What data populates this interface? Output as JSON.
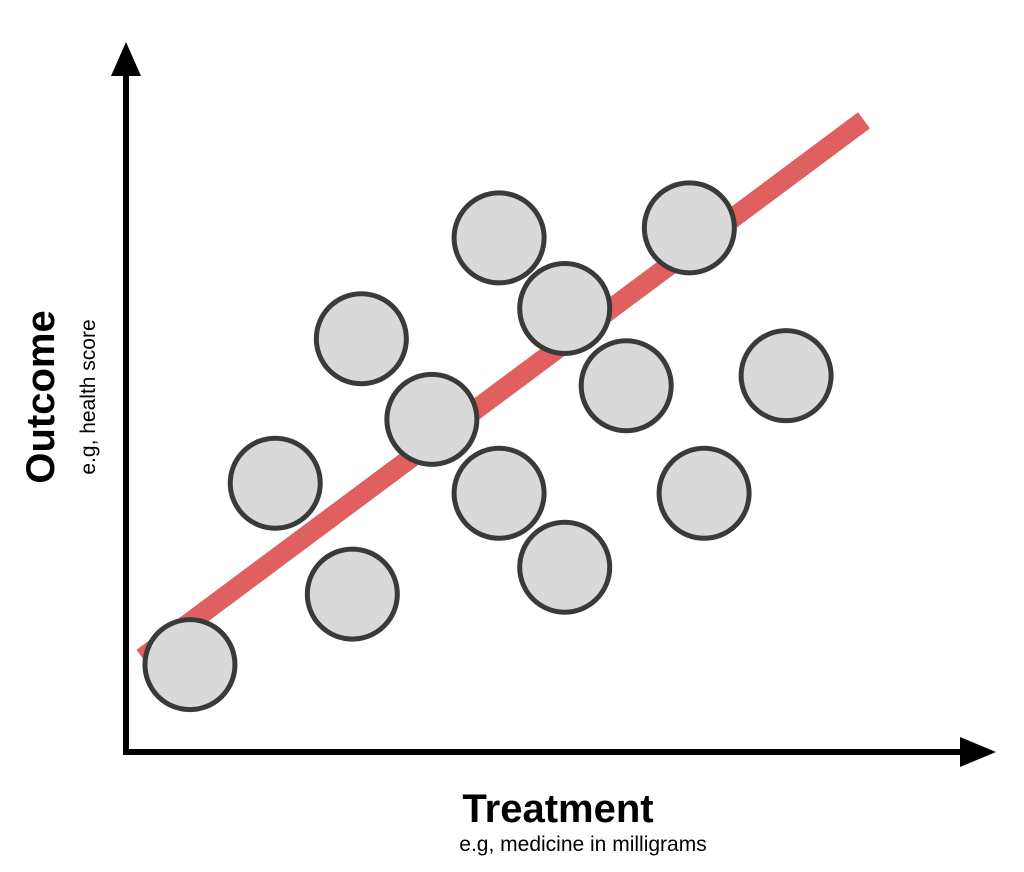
{
  "chart_data": {
    "type": "scatter",
    "title": "",
    "xlabel": "Treatment",
    "xlabel_sub": "e.g, medicine in milligrams",
    "ylabel": "Outcome",
    "ylabel_sub": "e.g, health score",
    "grid": false,
    "xlim": [
      0,
      10
    ],
    "ylim": [
      0,
      10
    ],
    "points": [
      {
        "x": 0.78,
        "y": 1.3
      },
      {
        "x": 1.82,
        "y": 4.0
      },
      {
        "x": 2.76,
        "y": 2.35
      },
      {
        "x": 2.87,
        "y": 6.15
      },
      {
        "x": 3.73,
        "y": 4.95
      },
      {
        "x": 4.55,
        "y": 3.85
      },
      {
        "x": 4.55,
        "y": 7.65
      },
      {
        "x": 5.35,
        "y": 2.75
      },
      {
        "x": 5.35,
        "y": 6.6
      },
      {
        "x": 6.1,
        "y": 5.45
      },
      {
        "x": 6.87,
        "y": 7.8
      },
      {
        "x": 7.05,
        "y": 3.85
      },
      {
        "x": 8.05,
        "y": 5.6
      }
    ],
    "trend_line": {
      "x1": 0.2,
      "y1": 1.4,
      "x2": 9.0,
      "y2": 9.4
    },
    "colors": {
      "axis": "#000000",
      "point_fill": "#d9d9d9",
      "point_stroke": "#3a3a3a",
      "trend": "#e06060"
    }
  }
}
